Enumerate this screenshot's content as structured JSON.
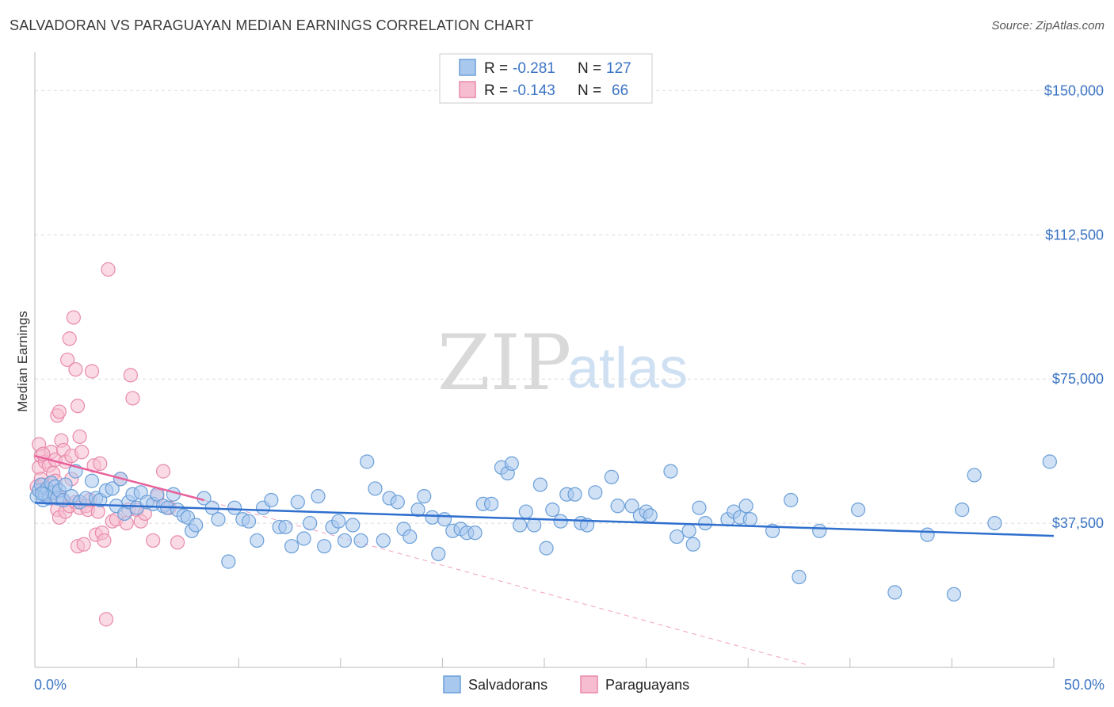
{
  "title": "SALVADORAN VS PARAGUAYAN MEDIAN EARNINGS CORRELATION CHART",
  "source": "Source: ZipAtlas.com",
  "watermark": {
    "zip": "ZIP",
    "atlas": "atlas"
  },
  "colors": {
    "blue_fill": "#a9c8ee",
    "blue_stroke": "#6a9fd8",
    "blue_line": "#2f6fce",
    "pink_fill": "#f6bdd0",
    "pink_stroke": "#e98aab",
    "pink_line": "#e8609a",
    "tick_text": "#3b74c4",
    "grid": "#dcdcdc"
  },
  "chart_data": {
    "type": "scatter",
    "title": "SALVADORAN VS PARAGUAYAN MEDIAN EARNINGS CORRELATION CHART",
    "ylabel": "Median Earnings",
    "xlabel": "",
    "xlim": [
      0,
      50
    ],
    "ylim": [
      0,
      157500
    ],
    "x_tick_labels": [
      "0.0%",
      "50.0%"
    ],
    "y_ticks": [
      37500,
      75000,
      112500,
      150000
    ],
    "y_tick_labels": [
      "$37,500",
      "$75,000",
      "$112,500",
      "$150,000"
    ],
    "legend": [
      {
        "name": "Salvadorans",
        "r_label": "R =",
        "r_value": "-0.281",
        "n_label": "N =",
        "n_value": "127"
      },
      {
        "name": "Paraguayans",
        "r_label": "R =",
        "r_value": "-0.143",
        "n_label": "N =",
        "n_value": "66"
      }
    ],
    "series": [
      {
        "name": "Salvadorans",
        "color": "blue",
        "trend": {
          "x": [
            0,
            50
          ],
          "y": [
            42800,
            34200
          ]
        },
        "points": [
          [
            0.1,
            44500
          ],
          [
            0.2,
            46000
          ],
          [
            0.3,
            47500
          ],
          [
            0.4,
            43500
          ],
          [
            0.5,
            45000
          ],
          [
            0.6,
            46500
          ],
          [
            0.7,
            44000
          ],
          [
            0.8,
            48000
          ],
          [
            0.9,
            45500
          ],
          [
            1.0,
            47000
          ],
          [
            1.1,
            44000
          ],
          [
            1.2,
            46000
          ],
          [
            1.4,
            43500
          ],
          [
            1.5,
            47500
          ],
          [
            1.8,
            44500
          ],
          [
            2.0,
            51000
          ],
          [
            2.2,
            43000
          ],
          [
            2.5,
            44000
          ],
          [
            2.8,
            48500
          ],
          [
            3.0,
            44000
          ],
          [
            3.2,
            43500
          ],
          [
            3.5,
            46000
          ],
          [
            3.8,
            46500
          ],
          [
            4.0,
            42000
          ],
          [
            4.2,
            49000
          ],
          [
            4.4,
            40000
          ],
          [
            4.6,
            43000
          ],
          [
            4.8,
            45000
          ],
          [
            5.0,
            41500
          ],
          [
            5.2,
            45500
          ],
          [
            5.5,
            43000
          ],
          [
            5.8,
            42500
          ],
          [
            6.0,
            45000
          ],
          [
            6.3,
            42000
          ],
          [
            6.5,
            41500
          ],
          [
            6.8,
            45000
          ],
          [
            7.0,
            41000
          ],
          [
            7.3,
            39500
          ],
          [
            7.5,
            39000
          ],
          [
            7.7,
            35500
          ],
          [
            7.9,
            37000
          ],
          [
            8.3,
            44000
          ],
          [
            8.7,
            41500
          ],
          [
            9.0,
            38500
          ],
          [
            9.5,
            27500
          ],
          [
            9.8,
            41500
          ],
          [
            10.2,
            38500
          ],
          [
            10.5,
            38000
          ],
          [
            10.9,
            33000
          ],
          [
            11.2,
            41500
          ],
          [
            11.6,
            43500
          ],
          [
            12.0,
            36500
          ],
          [
            12.3,
            36500
          ],
          [
            12.6,
            31500
          ],
          [
            12.9,
            43000
          ],
          [
            13.2,
            33500
          ],
          [
            13.5,
            37500
          ],
          [
            13.9,
            44500
          ],
          [
            14.2,
            31500
          ],
          [
            14.6,
            36500
          ],
          [
            14.9,
            38000
          ],
          [
            15.2,
            33000
          ],
          [
            15.6,
            37000
          ],
          [
            16.0,
            33000
          ],
          [
            16.3,
            53500
          ],
          [
            16.7,
            46500
          ],
          [
            17.1,
            33000
          ],
          [
            17.4,
            44000
          ],
          [
            17.8,
            43000
          ],
          [
            18.1,
            36000
          ],
          [
            18.4,
            34000
          ],
          [
            18.8,
            41000
          ],
          [
            19.1,
            44500
          ],
          [
            19.5,
            39000
          ],
          [
            19.8,
            29500
          ],
          [
            20.1,
            38500
          ],
          [
            20.5,
            35500
          ],
          [
            20.9,
            36000
          ],
          [
            21.2,
            35000
          ],
          [
            21.6,
            35000
          ],
          [
            22.0,
            42500
          ],
          [
            22.4,
            42500
          ],
          [
            22.9,
            52000
          ],
          [
            23.2,
            50500
          ],
          [
            23.4,
            53000
          ],
          [
            23.8,
            37000
          ],
          [
            24.1,
            40500
          ],
          [
            24.5,
            37000
          ],
          [
            24.8,
            47500
          ],
          [
            25.1,
            31000
          ],
          [
            25.4,
            41000
          ],
          [
            25.8,
            38000
          ],
          [
            26.1,
            45000
          ],
          [
            26.5,
            45000
          ],
          [
            26.8,
            37500
          ],
          [
            27.1,
            37000
          ],
          [
            27.5,
            45500
          ],
          [
            28.3,
            49500
          ],
          [
            28.6,
            42000
          ],
          [
            29.3,
            42000
          ],
          [
            29.7,
            39500
          ],
          [
            30.0,
            40500
          ],
          [
            30.2,
            39500
          ],
          [
            31.2,
            51000
          ],
          [
            31.5,
            34000
          ],
          [
            32.1,
            35500
          ],
          [
            32.3,
            32000
          ],
          [
            32.6,
            41500
          ],
          [
            32.9,
            37500
          ],
          [
            34.0,
            38500
          ],
          [
            34.3,
            40500
          ],
          [
            34.6,
            39000
          ],
          [
            34.9,
            42000
          ],
          [
            35.1,
            38500
          ],
          [
            36.2,
            35500
          ],
          [
            37.1,
            43500
          ],
          [
            37.5,
            23500
          ],
          [
            38.5,
            35500
          ],
          [
            40.4,
            41000
          ],
          [
            42.2,
            19500
          ],
          [
            43.8,
            34500
          ],
          [
            45.1,
            19000
          ],
          [
            45.5,
            41000
          ],
          [
            46.1,
            50000
          ],
          [
            47.1,
            37500
          ],
          [
            49.8,
            53500
          ],
          [
            0.35,
            45200
          ]
        ]
      },
      {
        "name": "Paraguayans",
        "color": "pink",
        "trend": {
          "x": [
            0,
            8.3
          ],
          "y": [
            55000,
            43500
          ]
        },
        "trend_ext": {
          "x": [
            8.3,
            38
          ],
          "y": [
            43500,
            500
          ]
        },
        "points": [
          [
            0.1,
            47000
          ],
          [
            0.2,
            58000
          ],
          [
            0.2,
            52000
          ],
          [
            0.3,
            49000
          ],
          [
            0.3,
            55000
          ],
          [
            0.4,
            47500
          ],
          [
            0.5,
            46000
          ],
          [
            0.5,
            53500
          ],
          [
            0.6,
            44500
          ],
          [
            0.7,
            52500
          ],
          [
            0.8,
            45500
          ],
          [
            0.8,
            56000
          ],
          [
            0.9,
            50500
          ],
          [
            1.0,
            54000
          ],
          [
            1.0,
            48500
          ],
          [
            1.1,
            65500
          ],
          [
            1.1,
            41000
          ],
          [
            1.2,
            66500
          ],
          [
            1.2,
            39000
          ],
          [
            1.3,
            59000
          ],
          [
            1.3,
            44000
          ],
          [
            1.4,
            56500
          ],
          [
            1.5,
            53500
          ],
          [
            1.5,
            40500
          ],
          [
            1.6,
            80000
          ],
          [
            1.7,
            85500
          ],
          [
            1.7,
            42000
          ],
          [
            1.8,
            49000
          ],
          [
            1.8,
            55000
          ],
          [
            1.9,
            91000
          ],
          [
            2.0,
            77500
          ],
          [
            2.0,
            43000
          ],
          [
            2.1,
            68000
          ],
          [
            2.1,
            31500
          ],
          [
            2.2,
            60000
          ],
          [
            2.2,
            41500
          ],
          [
            2.3,
            56000
          ],
          [
            2.4,
            32000
          ],
          [
            2.5,
            42000
          ],
          [
            2.6,
            41000
          ],
          [
            2.7,
            43500
          ],
          [
            2.8,
            77000
          ],
          [
            2.9,
            52500
          ],
          [
            3.0,
            34500
          ],
          [
            3.1,
            40500
          ],
          [
            3.2,
            53000
          ],
          [
            3.3,
            35000
          ],
          [
            3.4,
            33000
          ],
          [
            3.5,
            12500
          ],
          [
            3.6,
            103500
          ],
          [
            3.8,
            38000
          ],
          [
            4.0,
            38500
          ],
          [
            4.2,
            49000
          ],
          [
            4.5,
            37500
          ],
          [
            4.6,
            41000
          ],
          [
            4.7,
            76000
          ],
          [
            4.8,
            70000
          ],
          [
            5.0,
            41000
          ],
          [
            5.2,
            38000
          ],
          [
            5.4,
            40000
          ],
          [
            5.8,
            33000
          ],
          [
            6.0,
            44500
          ],
          [
            6.3,
            51000
          ],
          [
            6.6,
            41500
          ],
          [
            7.0,
            32500
          ],
          [
            0.4,
            55500
          ]
        ]
      }
    ]
  }
}
